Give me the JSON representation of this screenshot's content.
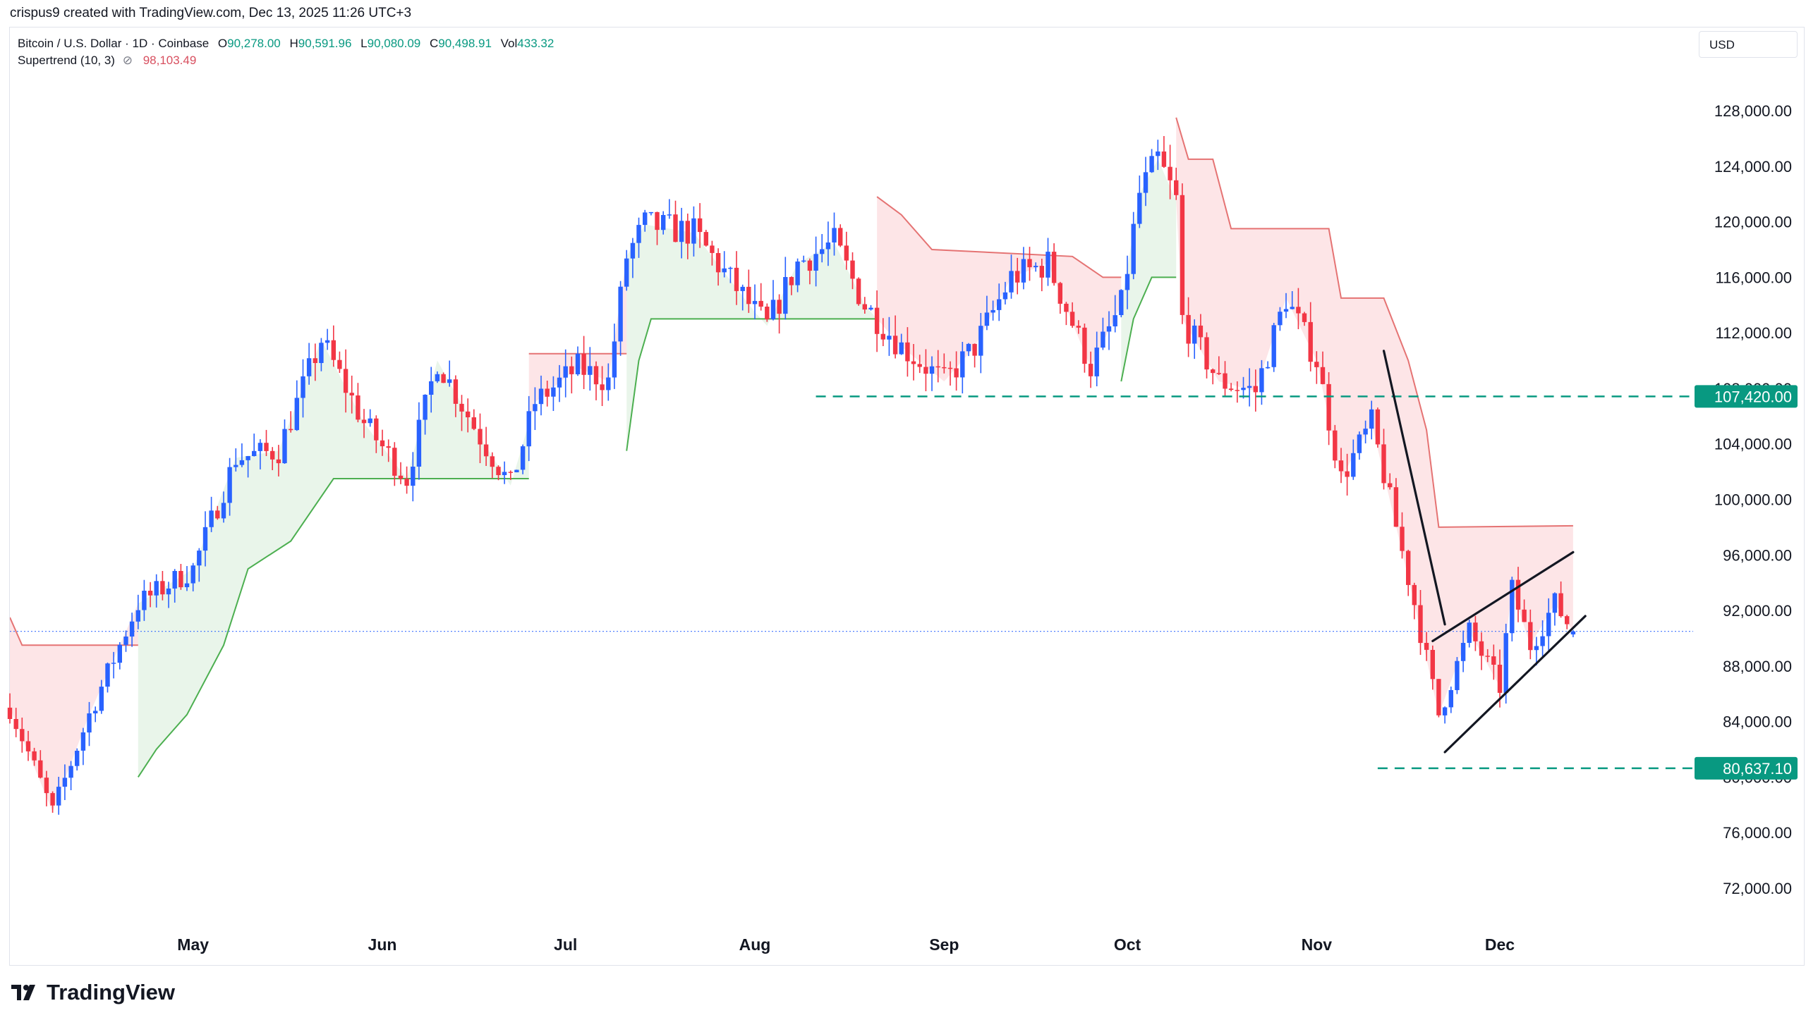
{
  "caption": "crispus9 created with TradingView.com, Dec 13, 2025 11:26 UTC+3",
  "legend": {
    "symbol": "Bitcoin / U.S. Dollar · 1D · Coinbase",
    "open_label": "O",
    "open": "90,278.00",
    "high_label": "H",
    "high": "90,591.96",
    "low_label": "L",
    "low": "90,080.09",
    "close_label": "C",
    "close": "90,498.91",
    "vol_label": "Vol",
    "vol": "433.32",
    "indicator": "Supertrend (10, 3)",
    "indicator_value": "98,103.49"
  },
  "currency": "USD",
  "brand": "TradingView",
  "colors": {
    "up": "#2962ff",
    "down": "#f23645",
    "supertrend_up": "#4caf50",
    "supertrend_down": "#e57373",
    "accent_label": "#089981"
  },
  "chart_data": {
    "type": "candlestick",
    "title": "Bitcoin / U.S. Dollar · 1D · Coinbase",
    "ylim": [
      69000,
      131000
    ],
    "y_ticks": [
      "72,000.00",
      "76,000.00",
      "80,000.00",
      "84,000.00",
      "88,000.00",
      "92,000.00",
      "96,000.00",
      "100,000.00",
      "104,000.00",
      "108,000.00",
      "112,000.00",
      "116,000.00",
      "120,000.00",
      "124,000.00",
      "128,000.00"
    ],
    "x_ticks": [
      "May",
      "Jun",
      "Jul",
      "Aug",
      "Sep",
      "Oct",
      "Nov",
      "Dec"
    ],
    "price_labels": [
      "107,420.00",
      "80,637.10"
    ],
    "horizontal_levels": [
      107420.0,
      80637.1
    ],
    "current_price": 90498.91,
    "anchor_closes": [
      {
        "date": "2025-04-01",
        "close": 85000
      },
      {
        "date": "2025-04-08",
        "close": 77500
      },
      {
        "date": "2025-04-14",
        "close": 84500
      },
      {
        "date": "2025-04-22",
        "close": 92500
      },
      {
        "date": "2025-05-01",
        "close": 95000
      },
      {
        "date": "2025-05-08",
        "close": 103000
      },
      {
        "date": "2025-05-15",
        "close": 103500
      },
      {
        "date": "2025-05-22",
        "close": 111500
      },
      {
        "date": "2025-05-29",
        "close": 105500
      },
      {
        "date": "2025-06-05",
        "close": 101500
      },
      {
        "date": "2025-06-10",
        "close": 110000
      },
      {
        "date": "2025-06-17",
        "close": 104500
      },
      {
        "date": "2025-06-22",
        "close": 101000
      },
      {
        "date": "2025-06-26",
        "close": 107000
      },
      {
        "date": "2025-07-03",
        "close": 109500
      },
      {
        "date": "2025-07-08",
        "close": 108500
      },
      {
        "date": "2025-07-11",
        "close": 117500
      },
      {
        "date": "2025-07-14",
        "close": 119800
      },
      {
        "date": "2025-07-22",
        "close": 119200
      },
      {
        "date": "2025-08-01",
        "close": 113500
      },
      {
        "date": "2025-08-03",
        "close": 112500
      },
      {
        "date": "2025-08-08",
        "close": 117000
      },
      {
        "date": "2025-08-14",
        "close": 118500
      },
      {
        "date": "2025-08-19",
        "close": 114000
      },
      {
        "date": "2025-08-25",
        "close": 111000
      },
      {
        "date": "2025-09-01",
        "close": 108500
      },
      {
        "date": "2025-09-06",
        "close": 111000
      },
      {
        "date": "2025-09-12",
        "close": 116000
      },
      {
        "date": "2025-09-18",
        "close": 117000
      },
      {
        "date": "2025-09-25",
        "close": 109500
      },
      {
        "date": "2025-09-30",
        "close": 114000
      },
      {
        "date": "2025-10-03",
        "close": 122000
      },
      {
        "date": "2025-10-06",
        "close": 124500
      },
      {
        "date": "2025-10-09",
        "close": 121500
      },
      {
        "date": "2025-10-10",
        "close": 113000
      },
      {
        "date": "2025-10-16",
        "close": 108500
      },
      {
        "date": "2025-10-22",
        "close": 107800
      },
      {
        "date": "2025-10-27",
        "close": 114500
      },
      {
        "date": "2025-11-01",
        "close": 110000
      },
      {
        "date": "2025-11-05",
        "close": 101500
      },
      {
        "date": "2025-11-10",
        "close": 105500
      },
      {
        "date": "2025-11-17",
        "close": 92500
      },
      {
        "date": "2025-11-21",
        "close": 84500
      },
      {
        "date": "2025-11-26",
        "close": 90500
      },
      {
        "date": "2025-12-01",
        "close": 86500
      },
      {
        "date": "2025-12-03",
        "close": 93500
      },
      {
        "date": "2025-12-06",
        "close": 89500
      },
      {
        "date": "2025-12-10",
        "close": 92500
      },
      {
        "date": "2025-12-13",
        "close": 90500
      }
    ],
    "supertrend": {
      "name": "Supertrend (10, 3)",
      "segments": [
        {
          "dir": "down",
          "points": [
            [
              "2025-04-01",
              91500
            ],
            [
              "2025-04-03",
              89500
            ],
            [
              "2025-04-22",
              89500
            ]
          ]
        },
        {
          "dir": "up",
          "points": [
            [
              "2025-04-22",
              80000
            ],
            [
              "2025-04-25",
              82000
            ],
            [
              "2025-04-30",
              84500
            ],
            [
              "2025-05-06",
              89500
            ],
            [
              "2025-05-10",
              95000
            ],
            [
              "2025-05-17",
              97000
            ],
            [
              "2025-05-24",
              101500
            ],
            [
              "2025-06-25",
              101500
            ]
          ]
        },
        {
          "dir": "down",
          "points": [
            [
              "2025-06-25",
              110500
            ],
            [
              "2025-07-11",
              110500
            ]
          ]
        },
        {
          "dir": "up",
          "points": [
            [
              "2025-07-11",
              103500
            ],
            [
              "2025-07-13",
              110000
            ],
            [
              "2025-07-15",
              113000
            ],
            [
              "2025-08-06",
              113000
            ],
            [
              "2025-08-21",
              113000
            ]
          ]
        },
        {
          "dir": "down",
          "points": [
            [
              "2025-08-21",
              121800
            ],
            [
              "2025-08-25",
              120500
            ],
            [
              "2025-08-30",
              118000
            ],
            [
              "2025-09-22",
              117500
            ],
            [
              "2025-09-27",
              116000
            ],
            [
              "2025-09-30",
              116000
            ]
          ]
        },
        {
          "dir": "up",
          "points": [
            [
              "2025-09-30",
              108500
            ],
            [
              "2025-10-02",
              113000
            ],
            [
              "2025-10-05",
              116000
            ],
            [
              "2025-10-09",
              116000
            ]
          ]
        },
        {
          "dir": "down",
          "points": [
            [
              "2025-10-09",
              127500
            ],
            [
              "2025-10-11",
              124500
            ],
            [
              "2025-10-15",
              124500
            ],
            [
              "2025-10-18",
              119500
            ],
            [
              "2025-11-03",
              119500
            ],
            [
              "2025-11-05",
              114500
            ],
            [
              "2025-11-12",
              114500
            ],
            [
              "2025-11-16",
              110000
            ],
            [
              "2025-11-19",
              105000
            ],
            [
              "2025-11-21",
              98000
            ],
            [
              "2025-12-13",
              98100
            ]
          ]
        }
      ]
    },
    "annotations": {
      "trend_line": [
        [
          "2025-11-12",
          110700
        ],
        [
          "2025-11-22",
          91000
        ]
      ],
      "wedge_upper": [
        [
          "2025-11-20",
          89800
        ],
        [
          "2025-12-13",
          96200
        ]
      ],
      "wedge_lower": [
        [
          "2025-11-22",
          81800
        ],
        [
          "2025-12-15",
          91600
        ]
      ]
    }
  }
}
